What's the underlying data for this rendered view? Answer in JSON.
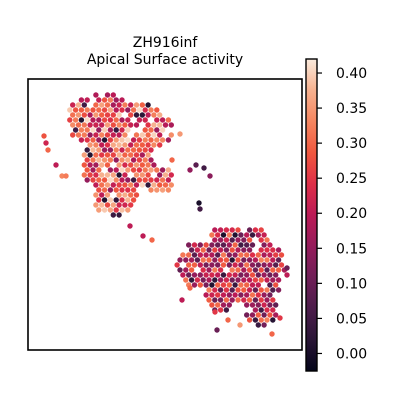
{
  "chart_data": {
    "type": "scatter",
    "subtype": "spatial hex-spot map with colorbar",
    "title": [
      "ZH916inf",
      "Apical Surface activity"
    ],
    "xlabel": "",
    "ylabel": "",
    "axis_ticks": false,
    "colorbar": {
      "placement": "right",
      "colormap": "rocket",
      "range": [
        -0.025,
        0.42
      ],
      "ticks": [
        0.0,
        0.05,
        0.1,
        0.15,
        0.2,
        0.25,
        0.3,
        0.35,
        0.4
      ],
      "tick_labels": [
        "0.00",
        "0.05",
        "0.10",
        "0.15",
        "0.20",
        "0.25",
        "0.30",
        "0.35",
        "0.40"
      ]
    },
    "regions": [
      {
        "name": "upper-left tissue",
        "approx_value_range": [
          0.1,
          0.42
        ]
      },
      {
        "name": "lower-right tissue",
        "approx_value_range": [
          0.0,
          0.4
        ]
      }
    ]
  }
}
